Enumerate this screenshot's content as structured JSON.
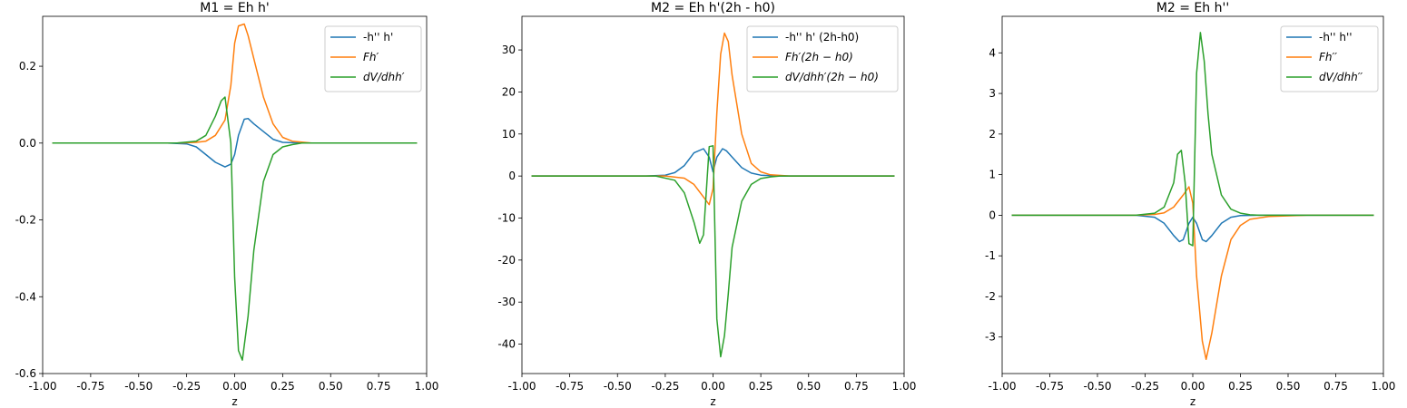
{
  "colors": {
    "blue": "#1f77b4",
    "orange": "#ff7f0e",
    "green": "#2ca02c"
  },
  "chart_data": [
    {
      "type": "line",
      "title": "M1 = Eh h'",
      "xlabel": "z",
      "ylabel": "",
      "xlim": [
        -1.0,
        1.0
      ],
      "ylim": [
        -0.6,
        0.33
      ],
      "xticks": [
        "-1.00",
        "-0.75",
        "-0.50",
        "-0.25",
        "0.00",
        "0.25",
        "0.50",
        "0.75",
        "1.00"
      ],
      "xtick_values": [
        -1.0,
        -0.75,
        -0.5,
        -0.25,
        0.0,
        0.25,
        0.5,
        0.75,
        1.0
      ],
      "yticks": [
        "-0.6",
        "-0.4",
        "-0.2",
        "0.0",
        "0.2"
      ],
      "ytick_values": [
        -0.6,
        -0.4,
        -0.2,
        0.0,
        0.2
      ],
      "legend": "top-right",
      "grid": false,
      "series": [
        {
          "name": "-h'' h'",
          "math": false,
          "color": "blue",
          "x": [
            -0.95,
            -0.35,
            -0.25,
            -0.2,
            -0.15,
            -0.1,
            -0.05,
            -0.02,
            0.0,
            0.02,
            0.05,
            0.07,
            0.1,
            0.15,
            0.2,
            0.25,
            0.35,
            0.95
          ],
          "y": [
            0,
            0,
            -0.002,
            -0.01,
            -0.03,
            -0.05,
            -0.062,
            -0.055,
            -0.03,
            0.02,
            0.062,
            0.064,
            0.05,
            0.03,
            0.01,
            0.002,
            0,
            0
          ]
        },
        {
          "name": "Fh′",
          "math": true,
          "color": "orange",
          "x": [
            -0.95,
            -0.3,
            -0.2,
            -0.15,
            -0.1,
            -0.05,
            -0.02,
            0.0,
            0.02,
            0.05,
            0.07,
            0.1,
            0.15,
            0.2,
            0.25,
            0.3,
            0.4,
            0.95
          ],
          "y": [
            0,
            0,
            0.002,
            0.005,
            0.02,
            0.06,
            0.15,
            0.26,
            0.305,
            0.31,
            0.28,
            0.22,
            0.12,
            0.05,
            0.015,
            0.005,
            0,
            0
          ]
        },
        {
          "name": "dV/dhh′",
          "math": true,
          "color": "green",
          "x": [
            -0.95,
            -0.3,
            -0.2,
            -0.15,
            -0.1,
            -0.07,
            -0.05,
            -0.02,
            0.0,
            0.02,
            0.04,
            0.07,
            0.1,
            0.15,
            0.2,
            0.25,
            0.3,
            0.35,
            0.95
          ],
          "y": [
            0,
            0,
            0.005,
            0.02,
            0.07,
            0.11,
            0.12,
            0.0,
            -0.35,
            -0.54,
            -0.565,
            -0.45,
            -0.28,
            -0.1,
            -0.03,
            -0.01,
            -0.004,
            0,
            0
          ]
        }
      ]
    },
    {
      "type": "line",
      "title": "M2 = Eh h'(2h - h0)",
      "xlabel": "z",
      "ylabel": "",
      "xlim": [
        -1.0,
        1.0
      ],
      "ylim": [
        -47,
        38
      ],
      "xticks": [
        "-1.00",
        "-0.75",
        "-0.50",
        "-0.25",
        "0.00",
        "0.25",
        "0.50",
        "0.75",
        "1.00"
      ],
      "xtick_values": [
        -1.0,
        -0.75,
        -0.5,
        -0.25,
        0.0,
        0.25,
        0.5,
        0.75,
        1.0
      ],
      "yticks": [
        "-40",
        "-30",
        "-20",
        "-10",
        "0",
        "10",
        "20",
        "30"
      ],
      "ytick_values": [
        -40,
        -30,
        -20,
        -10,
        0,
        10,
        20,
        30
      ],
      "legend": "top-right",
      "grid": false,
      "series": [
        {
          "name": "-h'' h' (2h-h0)",
          "math": false,
          "color": "blue",
          "x": [
            -0.95,
            -0.35,
            -0.25,
            -0.2,
            -0.15,
            -0.1,
            -0.05,
            -0.02,
            0.0,
            0.02,
            0.05,
            0.07,
            0.1,
            0.15,
            0.2,
            0.25,
            0.35,
            0.95
          ],
          "y": [
            0,
            0,
            0.2,
            0.8,
            2.5,
            5.5,
            6.5,
            4.5,
            1.0,
            4.5,
            6.5,
            6.0,
            4.5,
            2.0,
            0.7,
            0.2,
            0,
            0
          ]
        },
        {
          "name": "Fh′(2h − h0)",
          "math": true,
          "color": "orange",
          "x": [
            -0.95,
            -0.25,
            -0.15,
            -0.1,
            -0.05,
            -0.02,
            0.0,
            0.02,
            0.04,
            0.06,
            0.08,
            0.1,
            0.15,
            0.2,
            0.25,
            0.3,
            0.4,
            0.95
          ],
          "y": [
            0,
            0,
            -0.5,
            -2.0,
            -5.0,
            -6.8,
            -3.0,
            15.0,
            29.0,
            34.0,
            32.0,
            24.0,
            10.0,
            3.0,
            1.0,
            0.3,
            0,
            0
          ]
        },
        {
          "name": "dV/dhh′(2h − h0)",
          "math": true,
          "color": "green",
          "x": [
            -0.95,
            -0.3,
            -0.2,
            -0.15,
            -0.1,
            -0.07,
            -0.05,
            -0.02,
            0.0,
            0.02,
            0.04,
            0.06,
            0.08,
            0.1,
            0.15,
            0.2,
            0.25,
            0.3,
            0.35,
            0.95
          ],
          "y": [
            0,
            0,
            -1.0,
            -4.0,
            -11.0,
            -16.0,
            -14.0,
            7.0,
            7.2,
            -34.0,
            -43.0,
            -38.0,
            -28.0,
            -17.0,
            -6.0,
            -2.0,
            -0.6,
            -0.2,
            0,
            0
          ]
        }
      ]
    },
    {
      "type": "line",
      "title": "M2 = Eh h''",
      "xlabel": "z",
      "ylabel": "",
      "xlim": [
        -1.0,
        1.0
      ],
      "ylim": [
        -3.9,
        4.9
      ],
      "xticks": [
        "-1.00",
        "-0.75",
        "-0.50",
        "-0.25",
        "0.00",
        "0.25",
        "0.50",
        "0.75",
        "1.00"
      ],
      "xtick_values": [
        -1.0,
        -0.75,
        -0.5,
        -0.25,
        0.0,
        0.25,
        0.5,
        0.75,
        1.0
      ],
      "yticks": [
        "-3",
        "-2",
        "-1",
        "0",
        "1",
        "2",
        "3",
        "4"
      ],
      "ytick_values": [
        -3,
        -2,
        -1,
        0,
        1,
        2,
        3,
        4
      ],
      "legend": "top-right",
      "grid": false,
      "series": [
        {
          "name": "-h'' h''",
          "math": false,
          "color": "blue",
          "x": [
            -0.95,
            -0.3,
            -0.2,
            -0.15,
            -0.1,
            -0.07,
            -0.05,
            -0.02,
            0.0,
            0.02,
            0.05,
            0.07,
            0.1,
            0.15,
            0.2,
            0.25,
            0.35,
            0.95
          ],
          "y": [
            0,
            0,
            -0.05,
            -0.2,
            -0.5,
            -0.65,
            -0.6,
            -0.2,
            -0.05,
            -0.2,
            -0.6,
            -0.65,
            -0.5,
            -0.2,
            -0.05,
            -0.01,
            0,
            0
          ]
        },
        {
          "name": "Fh′′",
          "math": true,
          "color": "orange",
          "x": [
            -0.95,
            -0.3,
            -0.2,
            -0.15,
            -0.1,
            -0.05,
            -0.02,
            0.0,
            0.02,
            0.05,
            0.07,
            0.1,
            0.15,
            0.2,
            0.25,
            0.3,
            0.4,
            0.6,
            0.95
          ],
          "y": [
            0,
            0,
            0.02,
            0.06,
            0.2,
            0.5,
            0.7,
            0.3,
            -1.5,
            -3.1,
            -3.55,
            -2.9,
            -1.5,
            -0.6,
            -0.25,
            -0.1,
            -0.03,
            0,
            0
          ]
        },
        {
          "name": "dV/dhh′′",
          "math": true,
          "color": "green",
          "x": [
            -0.95,
            -0.3,
            -0.2,
            -0.15,
            -0.1,
            -0.08,
            -0.06,
            -0.04,
            -0.02,
            0.0,
            0.02,
            0.04,
            0.06,
            0.08,
            0.1,
            0.15,
            0.2,
            0.25,
            0.3,
            0.35,
            0.95
          ],
          "y": [
            0,
            0,
            0.05,
            0.2,
            0.8,
            1.5,
            1.6,
            0.8,
            -0.7,
            -0.75,
            3.5,
            4.5,
            3.8,
            2.5,
            1.5,
            0.5,
            0.15,
            0.05,
            0.01,
            0,
            0
          ]
        }
      ]
    }
  ]
}
